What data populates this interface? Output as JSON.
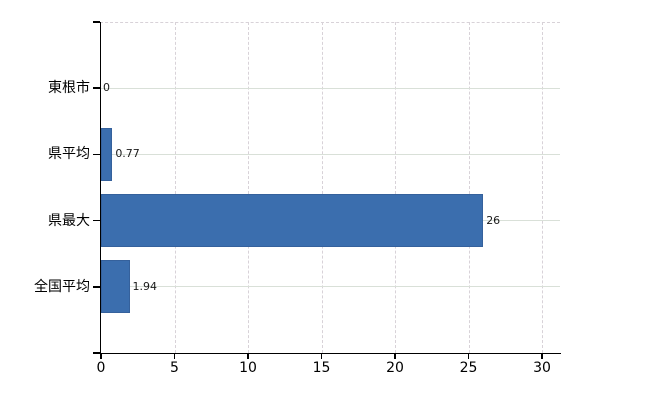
{
  "chart": {
    "background_color": "#ffffff",
    "bar_color": "#3b6eae",
    "bar_border_color": "#35619c",
    "grid_horizontal_color": "#d9e0d8",
    "grid_vertical_color": "#d8d2d8",
    "axis_color": "#000000",
    "category_label_color": "#000000",
    "value_label_color": "#1a1a1a"
  },
  "chart_data": {
    "type": "bar",
    "orientation": "horizontal",
    "title": "",
    "xlabel": "",
    "ylabel": "",
    "categories": [
      "東根市",
      "県平均",
      "県最大",
      "全国平均"
    ],
    "values": [
      0,
      0.77,
      26,
      1.94
    ],
    "value_labels": [
      "0",
      "0.77",
      "26",
      "1.94"
    ],
    "x_tick_values": [
      0,
      5,
      10,
      15,
      20,
      25,
      30
    ],
    "x_tick_labels": [
      "0",
      "5",
      "10",
      "15",
      "20",
      "25",
      "30"
    ],
    "xlim": [
      0,
      31.2
    ],
    "grid": true,
    "legend": false
  }
}
